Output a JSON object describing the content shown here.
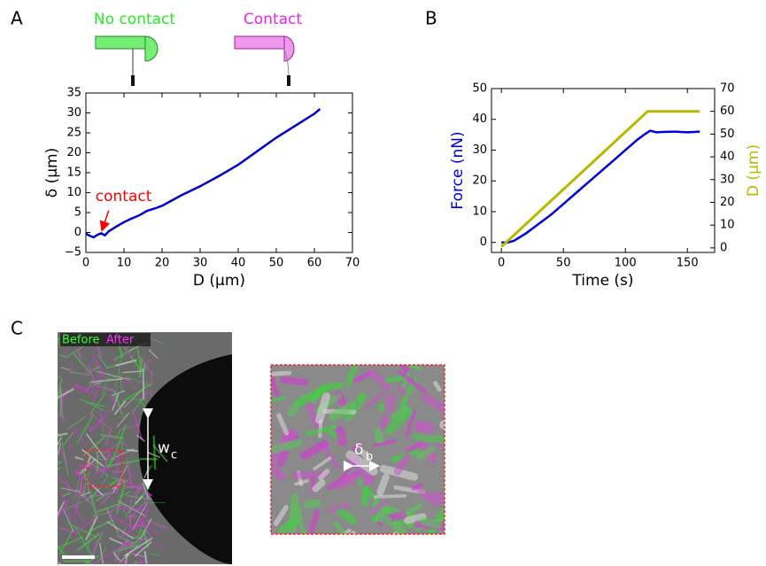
{
  "panel_labels": [
    "A",
    "B",
    "C"
  ],
  "schematic": {
    "left": "No contact",
    "right": "Contact"
  },
  "chart_data": [
    {
      "type": "line",
      "xlabel": "D (μm)",
      "ylabel": "δ (μm)",
      "xlim": [
        0,
        70
      ],
      "xticks": [
        0,
        10,
        20,
        30,
        40,
        50,
        60,
        70
      ],
      "ylim": [
        -5,
        35
      ],
      "yticks": [
        {
          "value": -5,
          "label": "−5"
        },
        0,
        5,
        10,
        15,
        20,
        25,
        30,
        35
      ],
      "annotations": [
        {
          "text": "contact",
          "color": "#ff0000"
        }
      ],
      "series": [
        {
          "color": "#0000cc",
          "x": [
            0,
            1,
            2,
            3,
            4,
            5,
            6,
            8,
            10,
            12,
            14,
            16,
            18,
            20,
            25,
            30,
            35,
            40,
            45,
            50,
            55,
            60,
            61.5
          ],
          "values": [
            -0.3,
            -0.8,
            -1.2,
            -0.6,
            -0.2,
            -0.7,
            0.3,
            1.5,
            2.6,
            3.5,
            4.3,
            5.4,
            6,
            6.7,
            9.3,
            11.6,
            14.2,
            17,
            20.4,
            23.8,
            26.8,
            29.8,
            31
          ]
        }
      ]
    },
    {
      "type": "line",
      "xlabel": "Time (s)",
      "ylabel": "Force (nN)",
      "y2label": "D (μm)",
      "xlim": [
        -8,
        172
      ],
      "xticks": [
        0,
        50,
        100,
        150
      ],
      "ylim": [
        -3.25,
        50
      ],
      "yticks": [
        0,
        10,
        20,
        30,
        40,
        50
      ],
      "y2lim": [
        -2,
        70
      ],
      "y2ticks": [
        0,
        10,
        20,
        30,
        40,
        50,
        60,
        70
      ],
      "series": [
        {
          "color": "#0000dd",
          "x": [
            0,
            5,
            10,
            20,
            30,
            40,
            50,
            60,
            70,
            80,
            90,
            100,
            110,
            115,
            120,
            125,
            130,
            140,
            150,
            160
          ],
          "values": [
            0,
            0,
            0.5,
            3,
            6,
            9,
            12.5,
            16,
            19.5,
            23,
            26.5,
            30,
            33.5,
            35,
            36.3,
            35.8,
            35.9,
            36,
            35.8,
            36
          ]
        },
        {
          "color": "#b8b800",
          "axis": "y2",
          "x": [
            0,
            118,
            160
          ],
          "values": [
            0.5,
            60,
            60
          ]
        }
      ]
    }
  ],
  "images": {
    "overlay_legend": [
      "Before",
      "After"
    ],
    "width_label": {
      "symbol": "w",
      "subscript": "c"
    },
    "spacing_label": {
      "symbol": "δ",
      "subscript": "b"
    }
  }
}
